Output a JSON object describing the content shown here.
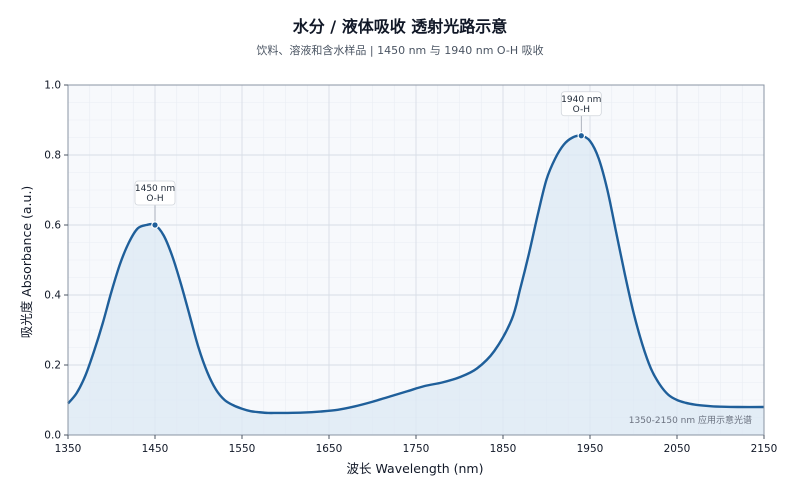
{
  "chart_data": {
    "type": "line",
    "title": "水分 / 液体吸收  透射光路示意",
    "subtitle": "饮料、溶液和含水样品 | 1450 nm 与 1940 nm O-H 吸收",
    "xlabel": "波长 Wavelength (nm)",
    "ylabel": "吸光度 Absorbance (a.u.)",
    "xlim": [
      1350,
      2150
    ],
    "ylim": [
      0,
      1.0
    ],
    "xticks": [
      1350,
      1450,
      1550,
      1650,
      1750,
      1850,
      1950,
      2050,
      2150
    ],
    "yticks": [
      0.0,
      0.2,
      0.4,
      0.6,
      0.8,
      1.0
    ],
    "ytick_labels": [
      "0.0",
      "0.2",
      "0.4",
      "0.6",
      "0.8",
      "1.0"
    ],
    "grid": true,
    "series": [
      {
        "color": "#1f5f9a",
        "fill": "#dce8f4",
        "x": [
          1350,
          1360,
          1370,
          1380,
          1390,
          1400,
          1410,
          1420,
          1430,
          1440,
          1450,
          1460,
          1470,
          1480,
          1490,
          1500,
          1510,
          1520,
          1530,
          1540,
          1550,
          1560,
          1570,
          1580,
          1590,
          1600,
          1620,
          1640,
          1660,
          1680,
          1700,
          1720,
          1740,
          1760,
          1780,
          1800,
          1820,
          1840,
          1860,
          1870,
          1880,
          1890,
          1900,
          1910,
          1920,
          1930,
          1940,
          1950,
          1960,
          1970,
          1980,
          1990,
          2000,
          2010,
          2020,
          2030,
          2040,
          2050,
          2060,
          2070,
          2080,
          2090,
          2100,
          2120,
          2150
        ],
        "y": [
          0.09,
          0.12,
          0.17,
          0.24,
          0.32,
          0.41,
          0.49,
          0.55,
          0.59,
          0.6,
          0.6,
          0.57,
          0.51,
          0.43,
          0.34,
          0.25,
          0.18,
          0.13,
          0.1,
          0.085,
          0.075,
          0.068,
          0.065,
          0.063,
          0.063,
          0.063,
          0.064,
          0.067,
          0.072,
          0.082,
          0.095,
          0.11,
          0.125,
          0.14,
          0.15,
          0.165,
          0.19,
          0.24,
          0.33,
          0.42,
          0.52,
          0.63,
          0.73,
          0.79,
          0.83,
          0.85,
          0.855,
          0.84,
          0.79,
          0.7,
          0.58,
          0.46,
          0.35,
          0.26,
          0.19,
          0.145,
          0.115,
          0.1,
          0.092,
          0.087,
          0.084,
          0.082,
          0.081,
          0.08,
          0.08
        ]
      }
    ],
    "annotations": [
      {
        "x": 1450,
        "y": 0.6,
        "lines": [
          "1450 nm",
          "O-H"
        ]
      },
      {
        "x": 1940,
        "y": 0.855,
        "lines": [
          "1940 nm",
          "O-H"
        ]
      }
    ],
    "note": "1350-2150 nm 应用示意光谱"
  }
}
